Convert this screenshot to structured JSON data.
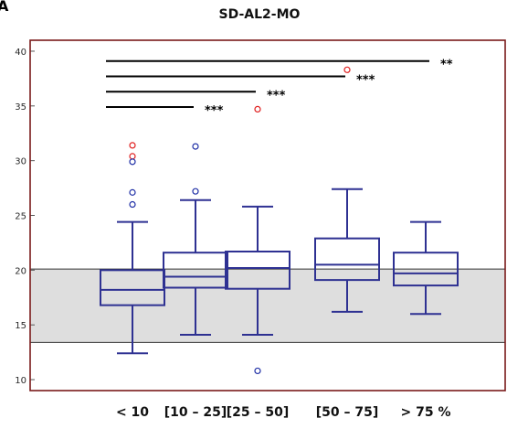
{
  "panel_letter": "A",
  "chart_data": {
    "type": "box",
    "title": "SD-AL2-MO",
    "xlabel": "",
    "ylabel": "",
    "ylim": [
      9,
      41
    ],
    "yticks": [
      10,
      15,
      20,
      25,
      30,
      35,
      40
    ],
    "categories": [
      "< 10",
      "[10 – 25]",
      "[25 – 50]",
      "[50 – 75]",
      "> 75 %"
    ],
    "boxes": [
      {
        "whisker_low": 12.4,
        "q1": 16.8,
        "median": 18.2,
        "q3": 20.0,
        "whisker_high": 24.4
      },
      {
        "whisker_low": 14.1,
        "q1": 18.4,
        "median": 19.4,
        "q3": 21.6,
        "whisker_high": 26.4
      },
      {
        "whisker_low": 14.1,
        "q1": 18.3,
        "median": 20.2,
        "q3": 21.7,
        "whisker_high": 25.8
      },
      {
        "whisker_low": 16.2,
        "q1": 19.1,
        "median": 20.5,
        "q3": 22.9,
        "whisker_high": 27.4
      },
      {
        "whisker_low": 16.0,
        "q1": 18.6,
        "median": 19.7,
        "q3": 21.6,
        "whisker_high": 24.4
      }
    ],
    "outliers": [
      {
        "category": 0,
        "value": 31.4,
        "color": "red"
      },
      {
        "category": 0,
        "value": 30.4,
        "color": "red"
      },
      {
        "category": 0,
        "value": 29.9,
        "color": "blue"
      },
      {
        "category": 0,
        "value": 27.1,
        "color": "blue"
      },
      {
        "category": 0,
        "value": 26.0,
        "color": "blue"
      },
      {
        "category": 1,
        "value": 31.3,
        "color": "blue"
      },
      {
        "category": 1,
        "value": 27.2,
        "color": "blue"
      },
      {
        "category": 2,
        "value": 34.7,
        "color": "red"
      },
      {
        "category": 2,
        "value": 10.8,
        "color": "blue"
      },
      {
        "category": 3,
        "value": 38.3,
        "color": "red"
      }
    ],
    "reference_band": {
      "low": 13.4,
      "high": 20.1
    },
    "significance": [
      {
        "from": 0,
        "to": 1,
        "value": 34.9,
        "label": "***"
      },
      {
        "from": 0,
        "to": 2,
        "value": 36.3,
        "label": "***"
      },
      {
        "from": 0,
        "to": 3,
        "value": 37.7,
        "label": "***"
      },
      {
        "from": 0,
        "to": 4,
        "value": 39.1,
        "label": "**"
      }
    ],
    "colors": {
      "box": "#2e3192",
      "box_fill": "#ffffff",
      "frame": "#7a1a1a",
      "band": "#dedede",
      "outlier_blue": "#1f2fa6",
      "outlier_red": "#e02020",
      "significance": "#000000"
    }
  }
}
